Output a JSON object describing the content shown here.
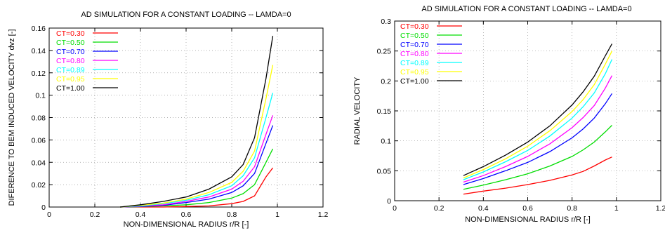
{
  "chart_data": [
    {
      "type": "line",
      "title": "AD SIMULATION FOR A CONSTANT LOADING -- LAMDA=0",
      "xlabel": "NON-DIMENSIONAL RADIUS r/R [-]",
      "ylabel": "DIFERENCE TO BEM INDUCED VELOCITY dvz [-]",
      "xlim": [
        0,
        1.2
      ],
      "ylim": [
        0,
        0.16
      ],
      "xticks": [
        "0",
        "0.2",
        "0.4",
        "0.6",
        "0.8",
        "1",
        "1.2"
      ],
      "yticks": [
        "0",
        "0.02",
        "0.04",
        "0.06",
        "0.08",
        "0.1",
        "0.12",
        "0.14",
        "0.16"
      ],
      "grid": true,
      "legend_position": "top-left",
      "x": [
        0.31,
        0.4,
        0.5,
        0.6,
        0.7,
        0.8,
        0.85,
        0.9,
        0.95,
        0.98
      ],
      "series": [
        {
          "name": "CT=0.30",
          "color": "#ff0000",
          "values": [
            0.0,
            0.0,
            0.0,
            0.0005,
            0.001,
            0.003,
            0.005,
            0.01,
            0.027,
            0.035
          ]
        },
        {
          "name": "CT=0.50",
          "color": "#00dd00",
          "values": [
            0.0,
            0.0003,
            0.001,
            0.002,
            0.004,
            0.008,
            0.012,
            0.02,
            0.04,
            0.052
          ]
        },
        {
          "name": "CT=0.70",
          "color": "#0000ff",
          "values": [
            0.0,
            0.0005,
            0.0015,
            0.004,
            0.007,
            0.013,
            0.019,
            0.03,
            0.057,
            0.073
          ]
        },
        {
          "name": "CT=0.80",
          "color": "#ff00ff",
          "values": [
            0.0,
            0.0008,
            0.002,
            0.005,
            0.009,
            0.016,
            0.023,
            0.036,
            0.065,
            0.082
          ]
        },
        {
          "name": "CT=0.89",
          "color": "#00ffff",
          "values": [
            0.0,
            0.001,
            0.003,
            0.006,
            0.011,
            0.019,
            0.028,
            0.044,
            0.08,
            0.102
          ]
        },
        {
          "name": "CT=0.95",
          "color": "#ffff00",
          "values": [
            0.0,
            0.0015,
            0.0035,
            0.007,
            0.013,
            0.022,
            0.032,
            0.05,
            0.097,
            0.127
          ]
        },
        {
          "name": "CT=1.00",
          "color": "#000000",
          "values": [
            0.0,
            0.002,
            0.005,
            0.009,
            0.016,
            0.027,
            0.038,
            0.062,
            0.115,
            0.153
          ]
        }
      ]
    },
    {
      "type": "line",
      "title": "AD SIMULATION FOR A CONSTANT LOADING -- LAMDA=0",
      "xlabel": "NON-DIMENSIONAL RADIUS r/R [-]",
      "ylabel": "RADIAL VELOCITY",
      "xlim": [
        0,
        1.2
      ],
      "ylim": [
        0,
        0.3
      ],
      "xticks": [
        "0",
        "0.2",
        "0.4",
        "0.6",
        "0.8",
        "1",
        "1.2"
      ],
      "yticks": [
        "0",
        "0.05",
        "0.1",
        "0.15",
        "0.2",
        "0.25",
        "0.3"
      ],
      "grid": true,
      "legend_position": "top-left",
      "x": [
        0.31,
        0.4,
        0.5,
        0.6,
        0.7,
        0.8,
        0.85,
        0.9,
        0.95,
        0.98
      ],
      "series": [
        {
          "name": "CT=0.30",
          "color": "#ff0000",
          "values": [
            0.011,
            0.016,
            0.021,
            0.027,
            0.034,
            0.043,
            0.049,
            0.058,
            0.068,
            0.073
          ]
        },
        {
          "name": "CT=0.50",
          "color": "#00dd00",
          "values": [
            0.019,
            0.026,
            0.035,
            0.045,
            0.058,
            0.074,
            0.085,
            0.098,
            0.115,
            0.126
          ]
        },
        {
          "name": "CT=0.70",
          "color": "#0000ff",
          "values": [
            0.027,
            0.037,
            0.05,
            0.064,
            0.082,
            0.105,
            0.12,
            0.138,
            0.162,
            0.179
          ]
        },
        {
          "name": "CT=0.80",
          "color": "#ff00ff",
          "values": [
            0.031,
            0.042,
            0.057,
            0.074,
            0.095,
            0.122,
            0.139,
            0.159,
            0.188,
            0.209
          ]
        },
        {
          "name": "CT=0.89",
          "color": "#00ffff",
          "values": [
            0.035,
            0.048,
            0.065,
            0.084,
            0.108,
            0.138,
            0.157,
            0.18,
            0.212,
            0.236
          ]
        },
        {
          "name": "CT=0.95",
          "color": "#ffff00",
          "values": [
            0.038,
            0.052,
            0.07,
            0.091,
            0.117,
            0.149,
            0.169,
            0.194,
            0.228,
            0.25
          ]
        },
        {
          "name": "CT=1.00",
          "color": "#000000",
          "values": [
            0.042,
            0.057,
            0.076,
            0.098,
            0.125,
            0.16,
            0.182,
            0.208,
            0.242,
            0.262
          ]
        }
      ]
    }
  ]
}
